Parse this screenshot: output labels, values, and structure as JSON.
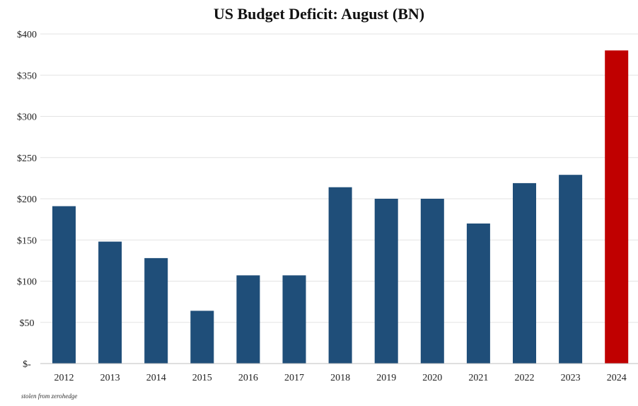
{
  "chart_data": {
    "type": "bar",
    "title": "US Budget Deficit: August  (BN)",
    "categories": [
      "2012",
      "2013",
      "2014",
      "2015",
      "2016",
      "2017",
      "2018",
      "2019",
      "2020",
      "2021",
      "2022",
      "2023",
      "2024"
    ],
    "values": [
      191,
      148,
      128,
      64,
      107,
      107,
      214,
      200,
      200,
      170,
      219,
      229,
      380
    ],
    "ylim": [
      0,
      400
    ],
    "yticks": [
      0,
      50,
      100,
      150,
      200,
      250,
      300,
      350,
      400
    ],
    "ytick_labels": [
      "$-",
      "$50",
      "$100",
      "$150",
      "$200",
      "$250",
      "$300",
      "$350",
      "$400"
    ],
    "xlabel": "",
    "ylabel": "",
    "grid": true,
    "legend": "none",
    "colors": {
      "default_bar": "#1f4e79",
      "highlight_bar": "#c00000"
    },
    "highlight_category": "2024"
  },
  "source_note": "stolen from zerohedge"
}
